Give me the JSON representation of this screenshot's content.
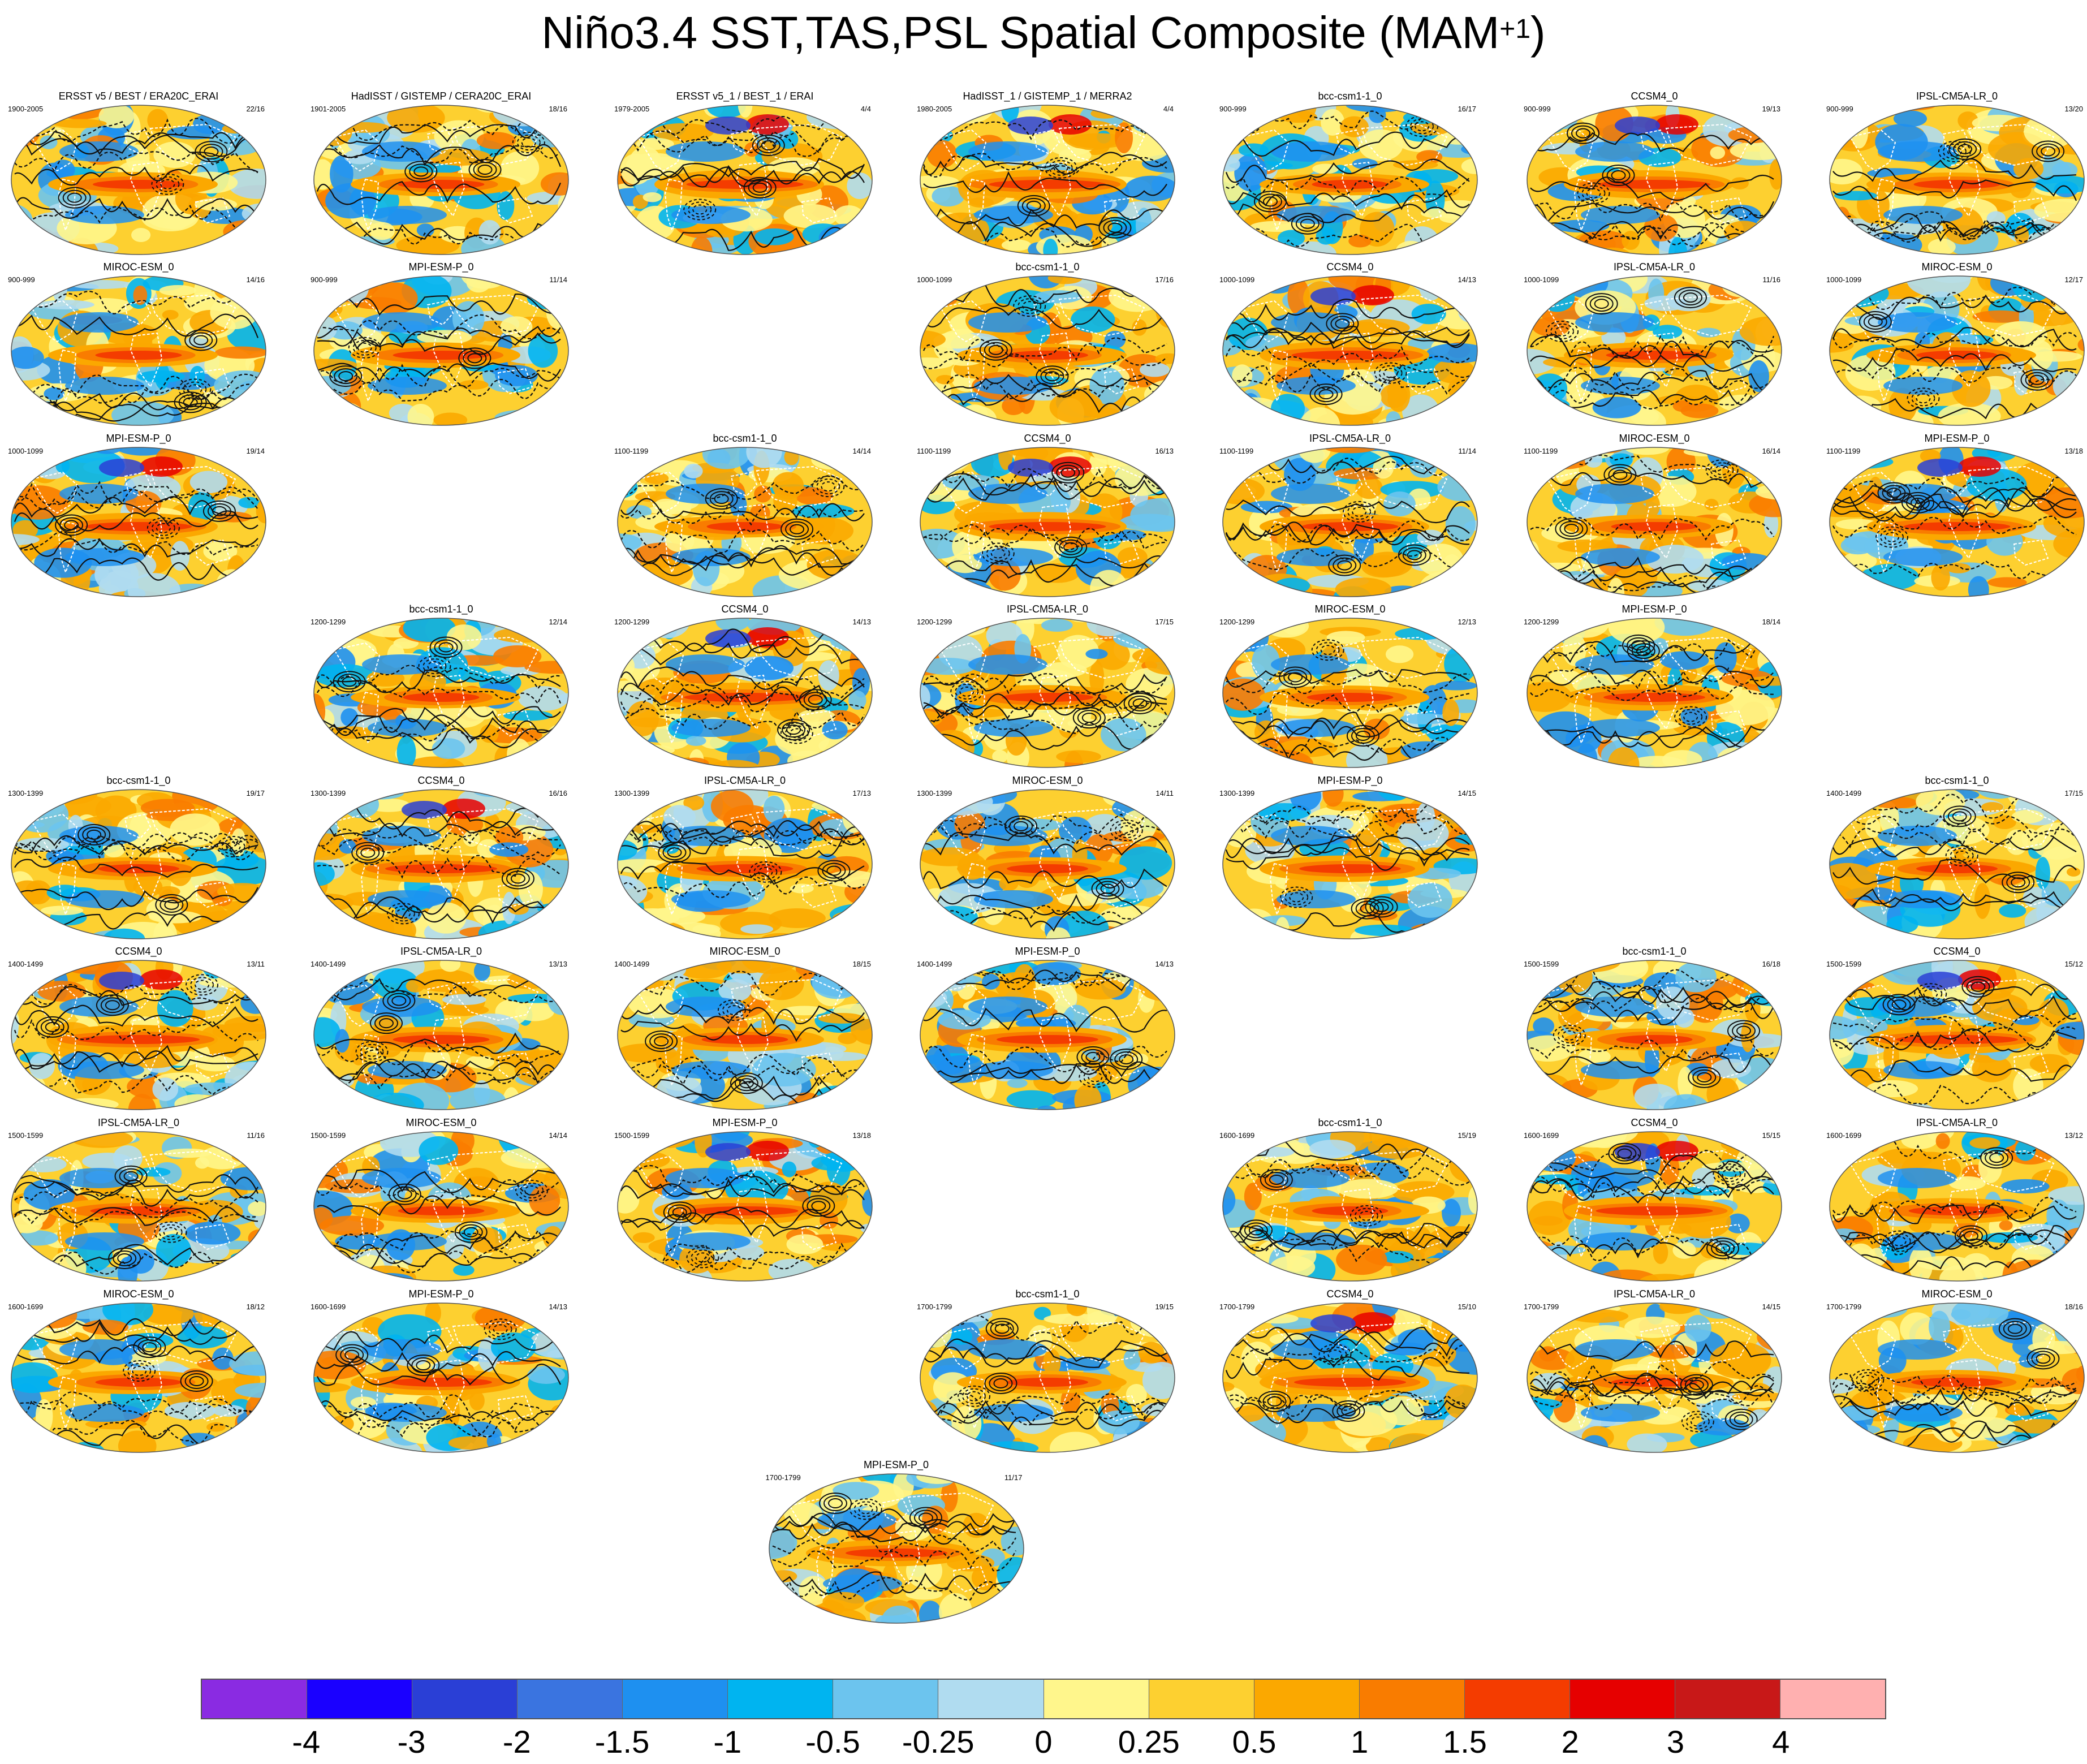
{
  "chart_data": {
    "type": "heatmap",
    "title": "Niño3.4 SST,TAS,PSL Spatial Composite (MAM",
    "title_superscript": "+1",
    "title_close": ")",
    "colorbar": {
      "labels": [
        "-4",
        "-3",
        "-2",
        "-1.5",
        "-1",
        "-0.5",
        "-0.25",
        "0",
        "0.25",
        "0.5",
        "1",
        "1.5",
        "2",
        "3",
        "4"
      ],
      "colors": [
        "#8a2be2",
        "#1a00ff",
        "#2a3fd6",
        "#3a74e0",
        "#1e90f0",
        "#00b4f0",
        "#6cc4ee",
        "#b0dcf0",
        "#fff68c",
        "#fdd030",
        "#fba800",
        "#f97c00",
        "#f43c00",
        "#e60000",
        "#c81818",
        "#ffb0b0"
      ]
    },
    "panels": [
      {
        "title": "ERSST v5 / BEST / ERA20C_ERAI",
        "years": "1900-2005",
        "count": "22/16",
        "row": 0,
        "col": 0,
        "w": 0.8
      },
      {
        "title": "HadISST / GISTEMP / CERA20C_ERAI",
        "years": "1901-2005",
        "count": "18/16",
        "row": 0,
        "col": 1,
        "w": 0.7
      },
      {
        "title": "ERSST v5_1 / BEST_1 / ERAI",
        "years": "1979-2005",
        "count": "4/4",
        "row": 0,
        "col": 2,
        "w": 1.3
      },
      {
        "title": "HadISST_1 / GISTEMP_1 / MERRA2",
        "years": "1980-2005",
        "count": "4/4",
        "row": 0,
        "col": 3,
        "w": 1.3
      },
      {
        "title": "bcc-csm1-1_0",
        "years": "900-999",
        "count": "16/17",
        "row": 0,
        "col": 4,
        "w": 0.5
      },
      {
        "title": "CCSM4_0",
        "years": "900-999",
        "count": "19/13",
        "row": 0,
        "col": 5,
        "w": 1.2
      },
      {
        "title": "IPSL-CM5A-LR_0",
        "years": "900-999",
        "count": "13/20",
        "row": 0,
        "col": 6,
        "w": 0.7
      },
      {
        "title": "MIROC-ESM_0",
        "years": "900-999",
        "count": "14/16",
        "row": 1,
        "col": 0,
        "w": 0.7
      },
      {
        "title": "MPI-ESM-P_0",
        "years": "900-999",
        "count": "11/14",
        "row": 1,
        "col": 1,
        "w": 0.9
      },
      {
        "title": "bcc-csm1-1_0",
        "years": "1000-1099",
        "count": "17/16",
        "row": 1,
        "col": 3,
        "w": 0.6
      },
      {
        "title": "CCSM4_0",
        "years": "1000-1099",
        "count": "14/13",
        "row": 1,
        "col": 4,
        "w": 1.3
      },
      {
        "title": "IPSL-CM5A-LR_0",
        "years": "1000-1099",
        "count": "11/16",
        "row": 1,
        "col": 5,
        "w": 0.9
      },
      {
        "title": "MIROC-ESM_0",
        "years": "1000-1099",
        "count": "12/17",
        "row": 1,
        "col": 6,
        "w": 0.6
      },
      {
        "title": "MPI-ESM-P_0",
        "years": "1000-1099",
        "count": "19/14",
        "row": 2,
        "col": 0,
        "w": 1.1
      },
      {
        "title": "bcc-csm1-1_0",
        "years": "1100-1199",
        "count": "14/14",
        "row": 2,
        "col": 2,
        "w": 0.5
      },
      {
        "title": "CCSM4_0",
        "years": "1100-1199",
        "count": "16/13",
        "row": 2,
        "col": 3,
        "w": 1.3
      },
      {
        "title": "IPSL-CM5A-LR_0",
        "years": "1100-1199",
        "count": "11/14",
        "row": 2,
        "col": 4,
        "w": 0.9
      },
      {
        "title": "MIROC-ESM_0",
        "years": "1100-1199",
        "count": "16/14",
        "row": 2,
        "col": 5,
        "w": 0.7
      },
      {
        "title": "MPI-ESM-P_0",
        "years": "1100-1199",
        "count": "13/18",
        "row": 2,
        "col": 6,
        "w": 1.1
      },
      {
        "title": "bcc-csm1-1_0",
        "years": "1200-1299",
        "count": "12/14",
        "row": 3,
        "col": 1,
        "w": 0.5
      },
      {
        "title": "CCSM4_0",
        "years": "1200-1299",
        "count": "14/13",
        "row": 3,
        "col": 2,
        "w": 1.5
      },
      {
        "title": "IPSL-CM5A-LR_0",
        "years": "1200-1299",
        "count": "17/15",
        "row": 3,
        "col": 3,
        "w": 0.8
      },
      {
        "title": "MIROC-ESM_0",
        "years": "1200-1299",
        "count": "12/13",
        "row": 3,
        "col": 4,
        "w": 0.7
      },
      {
        "title": "MPI-ESM-P_0",
        "years": "1200-1299",
        "count": "18/14",
        "row": 3,
        "col": 5,
        "w": 1.0
      },
      {
        "title": "bcc-csm1-1_0",
        "years": "1300-1399",
        "count": "19/17",
        "row": 4,
        "col": 0,
        "w": 0.6
      },
      {
        "title": "CCSM4_0",
        "years": "1300-1399",
        "count": "16/16",
        "row": 4,
        "col": 1,
        "w": 1.2
      },
      {
        "title": "IPSL-CM5A-LR_0",
        "years": "1300-1399",
        "count": "17/13",
        "row": 4,
        "col": 2,
        "w": 0.9
      },
      {
        "title": "MIROC-ESM_0",
        "years": "1300-1399",
        "count": "14/11",
        "row": 4,
        "col": 3,
        "w": 0.6
      },
      {
        "title": "MPI-ESM-P_0",
        "years": "1300-1399",
        "count": "14/15",
        "row": 4,
        "col": 4,
        "w": 1.0
      },
      {
        "title": "bcc-csm1-1_0",
        "years": "1400-1499",
        "count": "17/15",
        "row": 4,
        "col": 6,
        "w": 0.6
      },
      {
        "title": "CCSM4_0",
        "years": "1400-1499",
        "count": "13/11",
        "row": 5,
        "col": 0,
        "w": 1.4
      },
      {
        "title": "IPSL-CM5A-LR_0",
        "years": "1400-1499",
        "count": "13/13",
        "row": 5,
        "col": 1,
        "w": 0.9
      },
      {
        "title": "MIROC-ESM_0",
        "years": "1400-1499",
        "count": "18/15",
        "row": 5,
        "col": 2,
        "w": 0.7
      },
      {
        "title": "MPI-ESM-P_0",
        "years": "1400-1499",
        "count": "14/13",
        "row": 5,
        "col": 3,
        "w": 1.0
      },
      {
        "title": "bcc-csm1-1_0",
        "years": "1500-1599",
        "count": "16/18",
        "row": 5,
        "col": 5,
        "w": 0.5
      },
      {
        "title": "CCSM4_0",
        "years": "1500-1599",
        "count": "15/12",
        "row": 5,
        "col": 6,
        "w": 1.4
      },
      {
        "title": "IPSL-CM5A-LR_0",
        "years": "1500-1599",
        "count": "11/16",
        "row": 6,
        "col": 0,
        "w": 0.9
      },
      {
        "title": "MIROC-ESM_0",
        "years": "1500-1599",
        "count": "14/14",
        "row": 6,
        "col": 1,
        "w": 0.7
      },
      {
        "title": "MPI-ESM-P_0",
        "years": "1500-1599",
        "count": "13/18",
        "row": 6,
        "col": 2,
        "w": 1.1
      },
      {
        "title": "bcc-csm1-1_0",
        "years": "1600-1699",
        "count": "15/19",
        "row": 6,
        "col": 4,
        "w": 0.5
      },
      {
        "title": "CCSM4_0",
        "years": "1600-1699",
        "count": "15/15",
        "row": 6,
        "col": 5,
        "w": 1.3
      },
      {
        "title": "IPSL-CM5A-LR_0",
        "years": "1600-1699",
        "count": "13/12",
        "row": 6,
        "col": 6,
        "w": 0.9
      },
      {
        "title": "MIROC-ESM_0",
        "years": "1600-1699",
        "count": "18/12",
        "row": 7,
        "col": 0,
        "w": 0.7
      },
      {
        "title": "MPI-ESM-P_0",
        "years": "1600-1699",
        "count": "14/13",
        "row": 7,
        "col": 1,
        "w": 1.0
      },
      {
        "title": "bcc-csm1-1_0",
        "years": "1700-1799",
        "count": "19/15",
        "row": 7,
        "col": 3,
        "w": 0.6
      },
      {
        "title": "CCSM4_0",
        "years": "1700-1799",
        "count": "15/10",
        "row": 7,
        "col": 4,
        "w": 1.2
      },
      {
        "title": "IPSL-CM5A-LR_0",
        "years": "1700-1799",
        "count": "14/15",
        "row": 7,
        "col": 5,
        "w": 0.7
      },
      {
        "title": "MIROC-ESM_0",
        "years": "1700-1799",
        "count": "18/16",
        "row": 7,
        "col": 6,
        "w": 0.8
      },
      {
        "title": "MPI-ESM-P_0",
        "years": "1700-1799",
        "count": "11/17",
        "row": 8,
        "col": 2.5,
        "w": 1.0
      }
    ]
  }
}
